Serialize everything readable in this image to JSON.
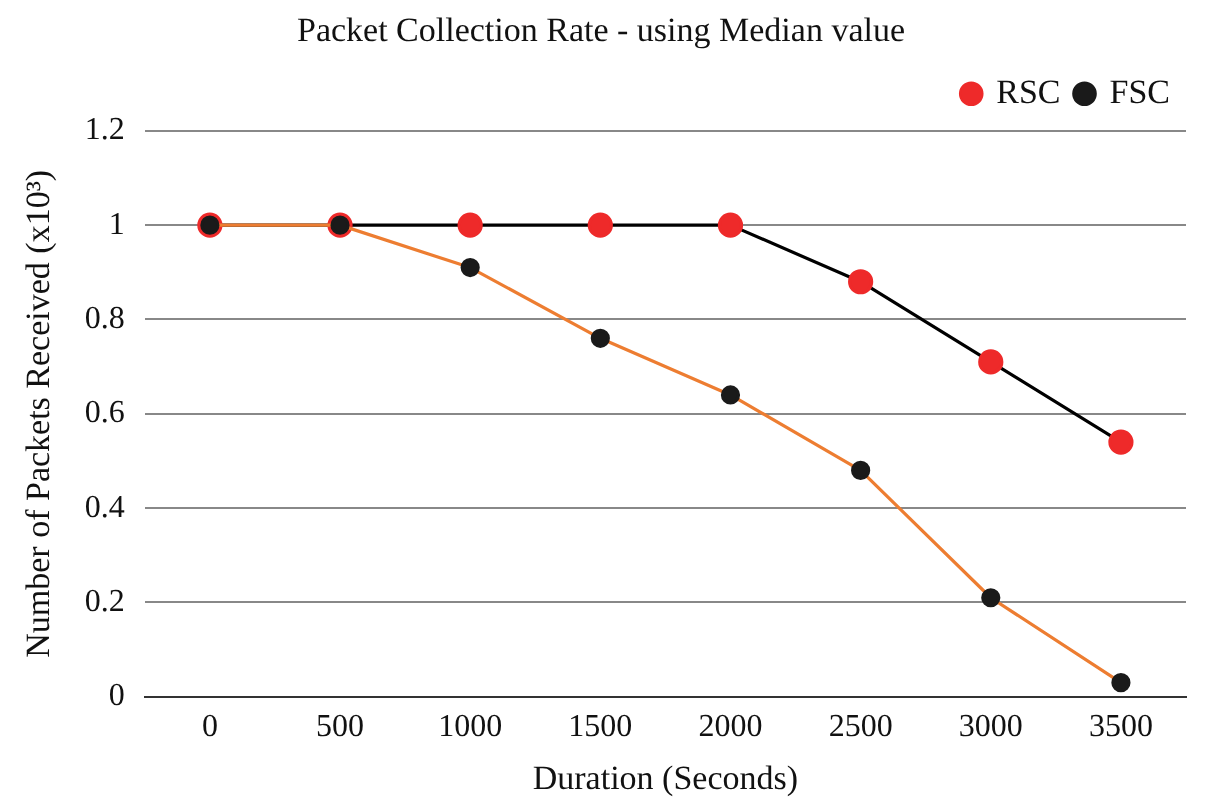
{
  "chart_data": {
    "type": "line",
    "title": "Packet Collection Rate - using Median value",
    "xlabel": "Duration (Seconds)",
    "ylabel": "Number of Packets Received (x10³)",
    "categories": [
      "0",
      "500",
      "1000",
      "1500",
      "2000",
      "2500",
      "3000",
      "3500"
    ],
    "series": [
      {
        "name": "RSC",
        "color": "#000000",
        "colors": [
          "#ee2a2a",
          "#ee2a2a",
          "#ee2a2a",
          "#ee2a2a",
          "#ee2a2a",
          "#ee2a2a",
          "#ee2a2a",
          "#ee2a2a"
        ],
        "values": [
          1,
          1,
          1,
          1,
          1,
          0.88,
          0.71,
          0.54
        ]
      },
      {
        "name": "FSC",
        "color": "#ed7d31",
        "colors": [
          "#1a1a1a",
          "#1a1a1a",
          "#1a1a1a",
          "#1a1a1a",
          "#1a1a1a",
          "#1a1a1a",
          "#1a1a1a",
          "#1a1a1a"
        ],
        "values": [
          1,
          1,
          0.91,
          0.76,
          0.64,
          0.48,
          0.21,
          0.03
        ]
      }
    ],
    "ylim": [
      0,
      1.2
    ],
    "yticks": [
      0,
      0.2,
      0.4,
      0.6,
      0.8,
      1,
      1.2
    ],
    "grid": "y",
    "legend": "top right",
    "marker": "circle",
    "line_style": "solid"
  }
}
